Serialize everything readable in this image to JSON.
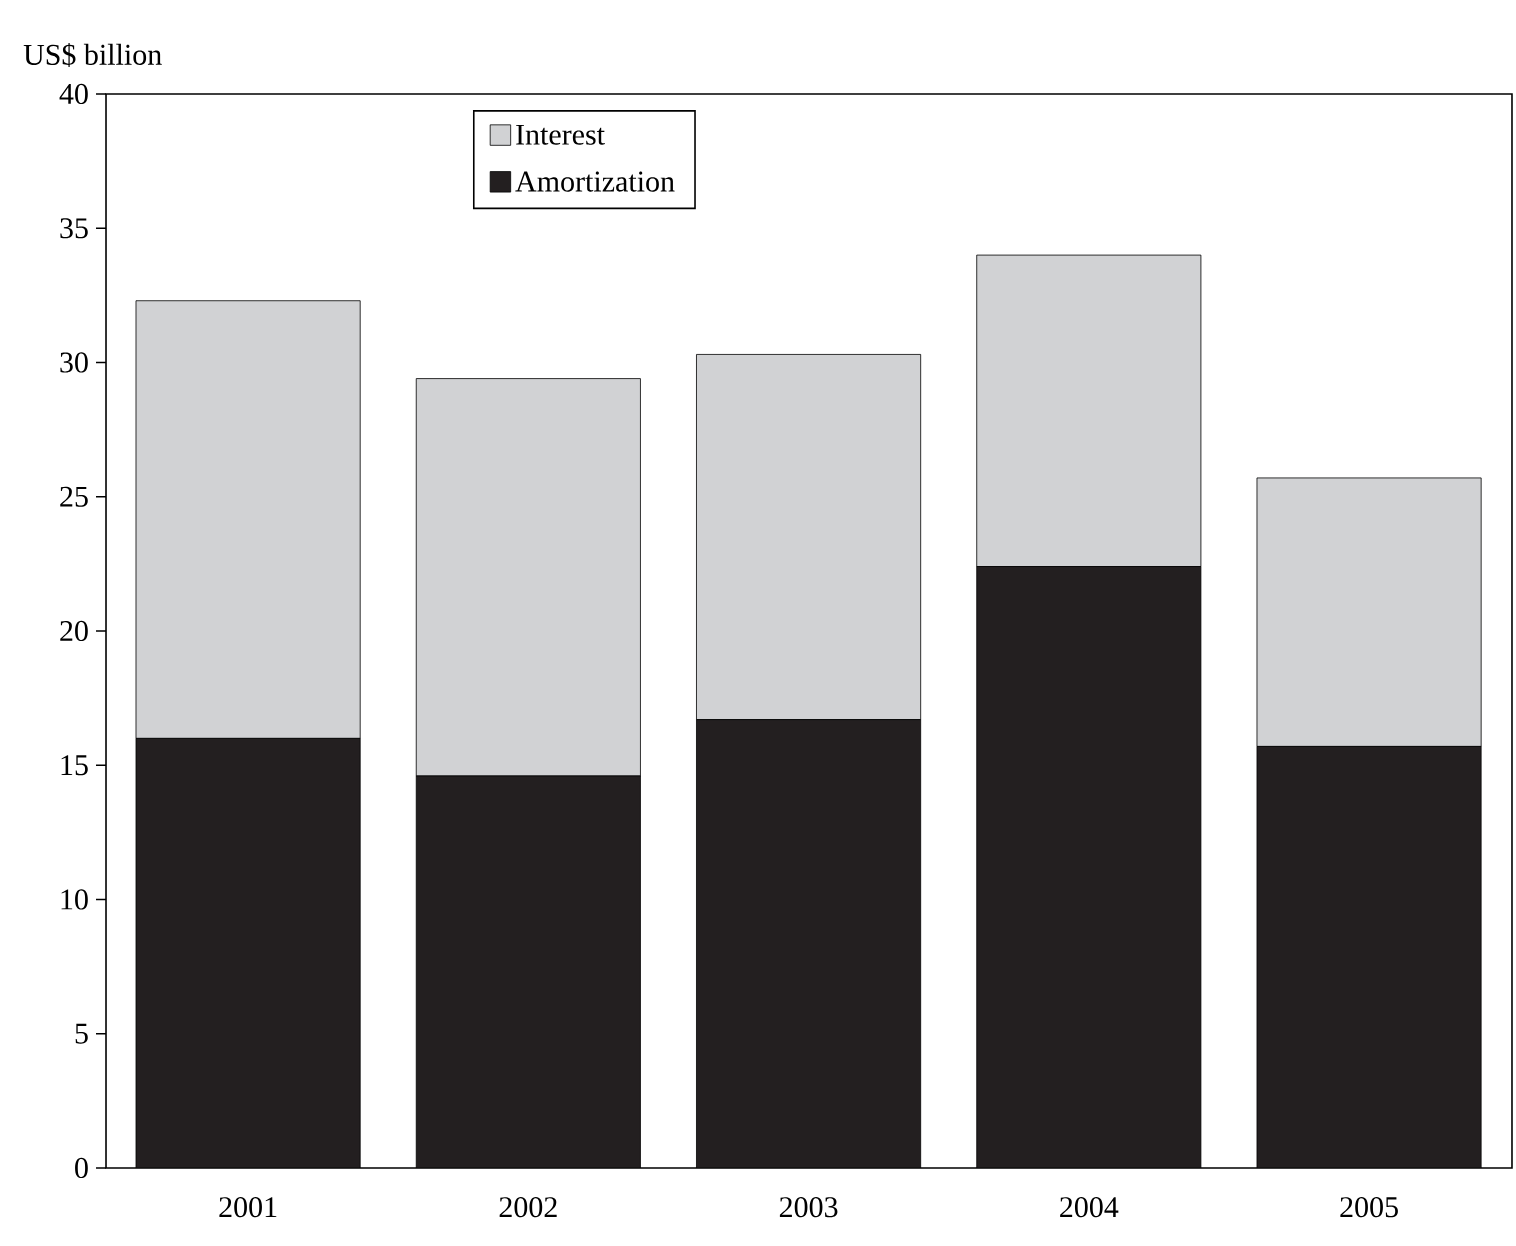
{
  "chart_data": {
    "type": "bar",
    "stacked": true,
    "ylabel": "US$ billion",
    "categories": [
      "2001",
      "2002",
      "2003",
      "2004",
      "2005"
    ],
    "series": [
      {
        "name": "Amortization",
        "color": "#231f20",
        "values": [
          16.0,
          14.6,
          16.7,
          22.4,
          15.7
        ]
      },
      {
        "name": "Interest",
        "color": "#d1d2d4",
        "values": [
          16.3,
          14.8,
          13.6,
          11.6,
          10.0
        ]
      }
    ],
    "ylim": [
      0,
      40
    ],
    "yticks": [
      0,
      5,
      10,
      15,
      20,
      25,
      30,
      35,
      40
    ],
    "legend": "top left"
  }
}
